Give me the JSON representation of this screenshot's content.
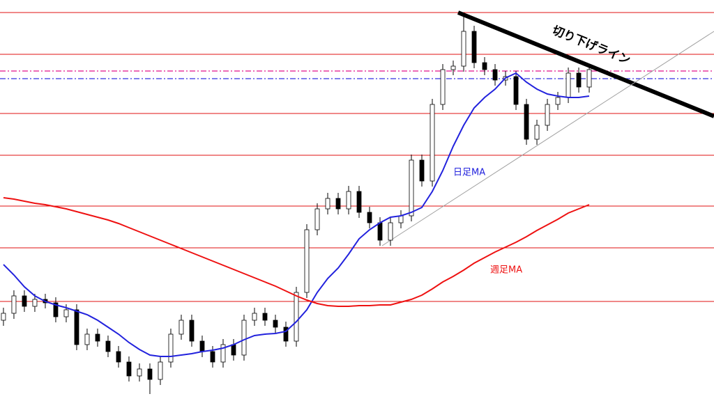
{
  "chart_data": {
    "type": "candlestick",
    "xlim": [
      -0.33,
      67.93
    ],
    "ylim": [
      0,
      576
    ],
    "up_color": "#ffffff",
    "down_color": "#000000",
    "outline_color": "#000000",
    "open": [
      116,
      126,
      151,
      136,
      146,
      141,
      121,
      131,
      81,
      96,
      86,
      71,
      56,
      36,
      46,
      31,
      56,
      96,
      116,
      86,
      71,
      56,
      81,
      66,
      116,
      126,
      116,
      106,
      86,
      156,
      246,
      276,
      291,
      276,
      301,
      271,
      256,
      231,
      256,
      266,
      346,
      316,
      426,
      476,
      481,
      531,
      486,
      476,
      461,
      466,
      426,
      376,
      396,
      426,
      436,
      471,
      451
    ],
    "close": [
      126,
      151,
      136,
      146,
      141,
      121,
      131,
      81,
      96,
      86,
      71,
      56,
      36,
      46,
      31,
      56,
      96,
      116,
      86,
      71,
      56,
      81,
      66,
      116,
      126,
      116,
      106,
      86,
      156,
      246,
      276,
      291,
      276,
      301,
      271,
      256,
      231,
      256,
      266,
      346,
      316,
      426,
      476,
      481,
      531,
      486,
      476,
      461,
      466,
      426,
      376,
      396,
      426,
      436,
      471,
      451,
      476
    ],
    "high": [
      134,
      159,
      159,
      154,
      154,
      149,
      139,
      139,
      104,
      104,
      94,
      79,
      64,
      54,
      54,
      64,
      104,
      124,
      124,
      94,
      79,
      89,
      89,
      124,
      134,
      134,
      124,
      114,
      164,
      254,
      284,
      299,
      299,
      309,
      309,
      279,
      264,
      264,
      274,
      354,
      354,
      434,
      484,
      489,
      558,
      539,
      494,
      484,
      474,
      474,
      434,
      404,
      434,
      444,
      479,
      479,
      484
    ],
    "low": [
      108,
      118,
      128,
      128,
      133,
      113,
      113,
      73,
      73,
      78,
      63,
      48,
      28,
      28,
      10,
      23,
      48,
      88,
      78,
      63,
      48,
      48,
      58,
      58,
      108,
      108,
      98,
      78,
      78,
      148,
      238,
      268,
      268,
      268,
      263,
      248,
      223,
      223,
      248,
      258,
      308,
      308,
      418,
      468,
      473,
      478,
      468,
      453,
      453,
      418,
      368,
      368,
      388,
      418,
      428,
      443,
      443
    ],
    "moving_averages": [
      {
        "name": "日足MA",
        "color": "#2222dd",
        "values": [
          196,
          181,
          164,
          151,
          143,
          138,
          134,
          129,
          124,
          116,
          106,
          96,
          84,
          74,
          66,
          64,
          64,
          66,
          68,
          71,
          73,
          76,
          81,
          88,
          94,
          96,
          97,
          100,
          114,
          131,
          156,
          176,
          191,
          211,
          233,
          246,
          256,
          264,
          266,
          271,
          278,
          301,
          331,
          366,
          396,
          421,
          436,
          448,
          464,
          471,
          458,
          448,
          441,
          438,
          436,
          436,
          438
        ]
      },
      {
        "name": "週足MA",
        "color": "#ee1111",
        "values": [
          292,
          290,
          287,
          284,
          282,
          279,
          276,
          272,
          268,
          264,
          260,
          255,
          249,
          243,
          237,
          231,
          225,
          219,
          213,
          207,
          201,
          195,
          189,
          183,
          177,
          171,
          165,
          158,
          151,
          145,
          140,
          137,
          136,
          136,
          137,
          137,
          138,
          138,
          142,
          146,
          152,
          161,
          171,
          179,
          188,
          198,
          206,
          214,
          221,
          228,
          236,
          245,
          253,
          261,
          270,
          276,
          282
        ]
      }
    ],
    "levels": [
      558,
      498,
      413,
      353,
      280,
      220,
      143
    ],
    "level_color": "#e01010",
    "dashed_levels": [
      {
        "value": 474,
        "color": "#e0108a"
      },
      {
        "value": 463,
        "color": "#3030e0"
      }
    ],
    "trendlines": [
      {
        "name": "切り下げライン",
        "color": "#000000",
        "x": [
          43.47,
          67.93
        ],
        "y": [
          558,
          409
        ]
      },
      {
        "color": "#a0a0a0",
        "x": [
          36.2,
          67.93
        ],
        "y": [
          223,
          531
        ]
      }
    ]
  }
}
